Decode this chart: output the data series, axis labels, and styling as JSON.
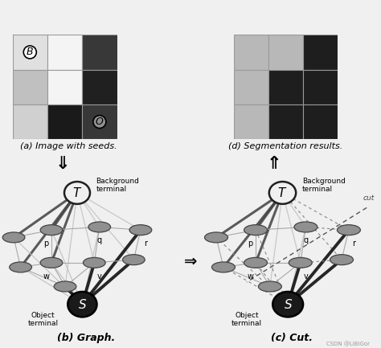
{
  "bg_color": "#f0f0f0",
  "panel_a_label": "(a) Image with seeds.",
  "panel_b_label": "(b) Graph.",
  "panel_c_label": "(c) Cut.",
  "panel_d_label": "(d) Segmentation results.",
  "arrow_down": "⇓",
  "arrow_up": "⇑",
  "arrow_right": "⇒",
  "grid_a": [
    [
      "#e8e8e8",
      "#f0f0f0",
      "#3a3a3a"
    ],
    [
      "#b8b8b8",
      "#f0f0f0",
      "#2a2a2a"
    ],
    [
      "#d0d0d0",
      "#1e1e1e",
      "#3a3a3a"
    ]
  ],
  "grid_d": [
    [
      "#b8b8b8",
      "#1e1e1e"
    ],
    [
      "#b8b8b8",
      "#1e1e1e"
    ],
    [
      "#b8b8b8",
      "#b8b8b8",
      "#1e1e1e"
    ]
  ],
  "watermark": "CSDN @LiBiGor"
}
